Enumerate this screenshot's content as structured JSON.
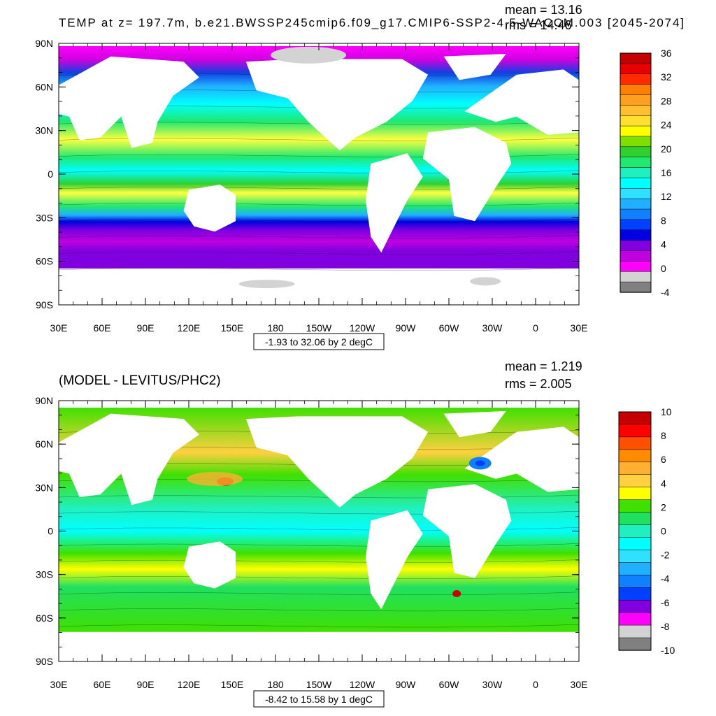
{
  "panels": [
    {
      "title": "TEMP at z= 197.7m, b.e21.BWSSP245cmip6.f09_g17.CMIP6-SSP2-4.5-WACCM.003 [2045-2074]",
      "stats": [
        "mean = 13.16",
        "rms = 14.46"
      ],
      "range_label": "-1.93 to 32.06 by 2 degC",
      "lat_labels": [
        "90N",
        "60N",
        "30N",
        "0",
        "30S",
        "60S",
        "90S"
      ],
      "lon_labels": [
        "30E",
        "60E",
        "90E",
        "120E",
        "150E",
        "180",
        "150W",
        "120W",
        "90W",
        "60W",
        "30W",
        "0",
        "30E"
      ],
      "colorbar": {
        "labels": [
          "36",
          "32",
          "28",
          "24",
          "20",
          "16",
          "12",
          "8",
          "4",
          "0",
          "-4"
        ],
        "colors": [
          "#C40000",
          "#E80000",
          "#FF2A00",
          "#FF7F00",
          "#FF9F20",
          "#FFBF30",
          "#FFDF30",
          "#FFFF00",
          "#7FE000",
          "#30D030",
          "#20E870",
          "#20F0C0",
          "#00FFFF",
          "#30E0FF",
          "#20B0FF",
          "#1080FF",
          "#0040FF",
          "#0000E0",
          "#8000E0",
          "#C000E0",
          "#FF00FF",
          "#D3D3D3",
          "#808080"
        ]
      }
    },
    {
      "title": "(MODEL - LEVITUS/PHC2)",
      "stats": [
        "mean = 1.219",
        "rms = 2.005"
      ],
      "range_label": "-8.42 to 15.58 by 1 degC",
      "lat_labels": [
        "90N",
        "60N",
        "30N",
        "0",
        "30S",
        "60S",
        "90S"
      ],
      "lon_labels": [
        "30E",
        "60E",
        "90E",
        "120E",
        "150E",
        "180",
        "150W",
        "120W",
        "90W",
        "60W",
        "30W",
        "0",
        "30E"
      ],
      "colorbar": {
        "labels": [
          "10",
          "8",
          "6",
          "4",
          "2",
          "0",
          "-2",
          "-4",
          "-6",
          "-8",
          "-10"
        ],
        "colors": [
          "#C40000",
          "#FF0000",
          "#FF5000",
          "#FF8C00",
          "#FFB030",
          "#FFD040",
          "#FFFF00",
          "#40E000",
          "#20E060",
          "#20F0C0",
          "#00FFFF",
          "#30E0FF",
          "#20B0FF",
          "#1080FF",
          "#0040FF",
          "#8000E0",
          "#FF00FF",
          "#D3D3D3",
          "#808080"
        ]
      }
    }
  ]
}
